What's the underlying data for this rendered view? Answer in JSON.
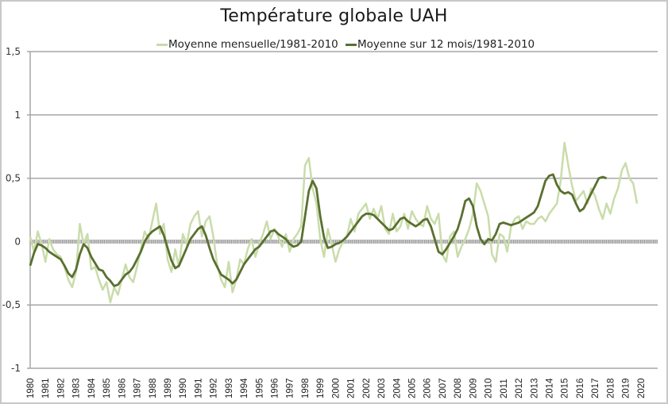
{
  "chart_data": {
    "type": "line",
    "title": "Température globale UAH",
    "xlabel": "",
    "ylabel": "",
    "ylim": [
      -1,
      1.5
    ],
    "xlim": [
      1980,
      2021
    ],
    "yticks": [
      1.5,
      1,
      0.5,
      0,
      -0.5,
      -1
    ],
    "ytick_labels": [
      "1,5",
      "1",
      "0,5",
      "0",
      "-0,5",
      "-1"
    ],
    "xtick_labels": [
      "1980",
      "1981",
      "1982",
      "1983",
      "1984",
      "1985",
      "1986",
      "1987",
      "1988",
      "1989",
      "1990",
      "1991",
      "1992",
      "1993",
      "1994",
      "1995",
      "1996",
      "1997",
      "1998",
      "1999",
      "2000",
      "2001",
      "2002",
      "2003",
      "2004",
      "2005",
      "2006",
      "2007",
      "2008",
      "2009",
      "2010",
      "2011",
      "2012",
      "2013",
      "2014",
      "2015",
      "2016",
      "2017",
      "2018",
      "2019",
      "2020"
    ],
    "grid": true,
    "legend_position": "top-center",
    "colors": {
      "monthly": "#c9dcaa",
      "smoothed": "#5a7030",
      "zero_line": "#a0a0a0",
      "grid": "#a6a6a6"
    },
    "series": [
      {
        "name": "Moyenne mensuelle/1981-2010",
        "x_step": "quarter",
        "x_start": 1980.0,
        "values": [
          0.04,
          -0.08,
          0.08,
          -0.02,
          -0.16,
          0.02,
          -0.06,
          -0.1,
          -0.12,
          -0.2,
          -0.3,
          -0.36,
          -0.24,
          0.14,
          -0.02,
          0.06,
          -0.22,
          -0.2,
          -0.3,
          -0.38,
          -0.32,
          -0.48,
          -0.36,
          -0.42,
          -0.3,
          -0.18,
          -0.28,
          -0.32,
          -0.2,
          -0.06,
          0.08,
          0.02,
          0.16,
          0.3,
          0.06,
          0.14,
          -0.14,
          -0.24,
          -0.06,
          -0.2,
          0.06,
          -0.02,
          0.14,
          0.2,
          0.24,
          0.04,
          0.16,
          0.2,
          0.04,
          -0.18,
          -0.3,
          -0.36,
          -0.16,
          -0.4,
          -0.3,
          -0.14,
          -0.18,
          -0.06,
          0.02,
          -0.12,
          -0.02,
          0.06,
          0.16,
          0.02,
          0.1,
          0.04,
          -0.04,
          0.06,
          -0.08,
          0.02,
          0.06,
          0.12,
          0.6,
          0.66,
          0.42,
          0.3,
          0.02,
          -0.12,
          0.1,
          -0.02,
          -0.16,
          -0.06,
          0.0,
          0.04,
          0.18,
          0.08,
          0.22,
          0.26,
          0.3,
          0.18,
          0.26,
          0.18,
          0.28,
          0.1,
          0.06,
          0.22,
          0.08,
          0.12,
          0.22,
          0.1,
          0.24,
          0.18,
          0.14,
          0.12,
          0.28,
          0.18,
          0.14,
          0.22,
          -0.1,
          -0.16,
          0.04,
          0.08,
          -0.12,
          -0.04,
          0.02,
          0.1,
          0.22,
          0.46,
          0.4,
          0.3,
          0.2,
          -0.1,
          -0.16,
          0.06,
          0.04,
          -0.08,
          0.12,
          0.18,
          0.2,
          0.1,
          0.16,
          0.14,
          0.14,
          0.18,
          0.2,
          0.16,
          0.22,
          0.26,
          0.3,
          0.48,
          0.78,
          0.6,
          0.44,
          0.32,
          0.36,
          0.4,
          0.3,
          0.42,
          0.36,
          0.26,
          0.18,
          0.3,
          0.22,
          0.34,
          0.42,
          0.56,
          0.62,
          0.5,
          0.46,
          0.3
        ]
      },
      {
        "name": "Moyenne sur 12 mois/1981-2010",
        "x_step": "quarter",
        "x_start": 1980.0,
        "values": [
          -0.19,
          -0.09,
          -0.02,
          -0.03,
          -0.05,
          -0.08,
          -0.1,
          -0.12,
          -0.14,
          -0.19,
          -0.25,
          -0.28,
          -0.22,
          -0.1,
          -0.02,
          -0.05,
          -0.12,
          -0.17,
          -0.22,
          -0.23,
          -0.28,
          -0.31,
          -0.35,
          -0.34,
          -0.3,
          -0.26,
          -0.24,
          -0.2,
          -0.14,
          -0.08,
          0.0,
          0.05,
          0.08,
          0.1,
          0.12,
          0.05,
          -0.05,
          -0.15,
          -0.21,
          -0.19,
          -0.12,
          -0.05,
          0.02,
          0.06,
          0.1,
          0.12,
          0.05,
          -0.05,
          -0.14,
          -0.2,
          -0.26,
          -0.28,
          -0.3,
          -0.33,
          -0.3,
          -0.24,
          -0.18,
          -0.14,
          -0.1,
          -0.06,
          -0.04,
          0.0,
          0.04,
          0.08,
          0.09,
          0.06,
          0.04,
          0.02,
          -0.02,
          -0.04,
          -0.03,
          0.0,
          0.2,
          0.4,
          0.48,
          0.42,
          0.2,
          0.03,
          -0.05,
          -0.04,
          -0.02,
          -0.01,
          0.01,
          0.04,
          0.08,
          0.12,
          0.16,
          0.2,
          0.22,
          0.22,
          0.21,
          0.18,
          0.15,
          0.12,
          0.09,
          0.1,
          0.14,
          0.18,
          0.19,
          0.16,
          0.14,
          0.12,
          0.14,
          0.17,
          0.18,
          0.12,
          0.02,
          -0.08,
          -0.1,
          -0.06,
          -0.01,
          0.04,
          0.1,
          0.2,
          0.32,
          0.34,
          0.28,
          0.12,
          0.02,
          -0.02,
          0.02,
          0.01,
          0.06,
          0.14,
          0.15,
          0.14,
          0.13,
          0.14,
          0.15,
          0.17,
          0.19,
          0.21,
          0.23,
          0.28,
          0.38,
          0.48,
          0.52,
          0.53,
          0.45,
          0.4,
          0.38,
          0.39,
          0.37,
          0.3,
          0.24,
          0.26,
          0.32,
          0.38,
          0.44,
          0.5,
          0.51,
          0.5
        ]
      }
    ]
  }
}
